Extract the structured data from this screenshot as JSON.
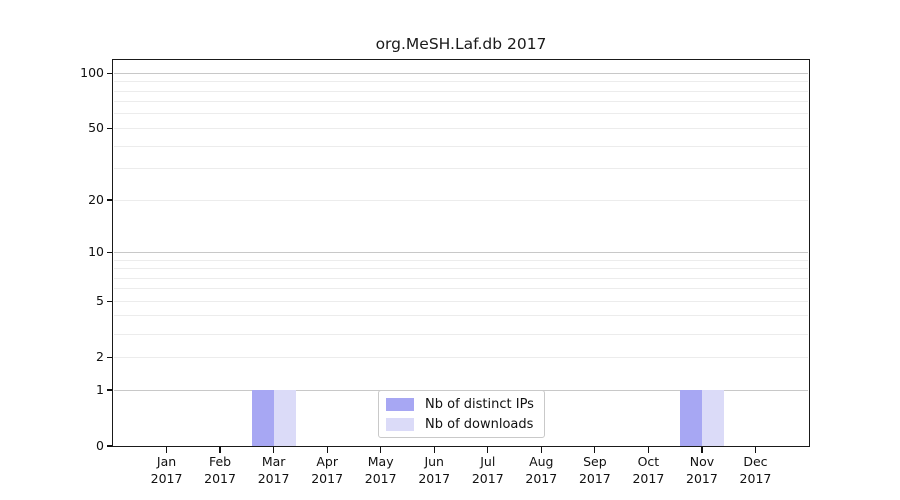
{
  "title": "org.MeSH.Laf.db 2017",
  "chart_data": {
    "type": "bar",
    "title": "org.MeSH.Laf.db 2017",
    "categories": [
      "Jan",
      "Feb",
      "Mar",
      "Apr",
      "May",
      "Jun",
      "Jul",
      "Aug",
      "Sep",
      "Oct",
      "Nov",
      "Dec"
    ],
    "category_year": "2017",
    "series": [
      {
        "name": "Nb of distinct IPs",
        "color": "#a7a7f3",
        "values": [
          0,
          0,
          1,
          0,
          0,
          0,
          0,
          0,
          0,
          0,
          1,
          0
        ]
      },
      {
        "name": "Nb of downloads",
        "color": "#dbdbf8",
        "values": [
          0,
          0,
          1,
          0,
          0,
          0,
          0,
          0,
          0,
          0,
          1,
          0
        ]
      }
    ],
    "xlabel": "",
    "ylabel": "",
    "yscale": "log10(1+y)",
    "ylim": [
      0,
      118
    ],
    "ytick_values": [
      0,
      1,
      2,
      5,
      10,
      20,
      50,
      100
    ],
    "ytick_labels": [
      "0",
      "1",
      "2",
      "5",
      "10",
      "20",
      "50",
      "100"
    ],
    "gridlines": {
      "major": [
        1,
        10,
        100
      ],
      "minor": [
        2,
        3,
        4,
        5,
        6,
        7,
        8,
        9,
        20,
        30,
        40,
        50,
        60,
        70,
        80,
        90
      ]
    },
    "grid": "horizontal",
    "legend_position": "inside-bottom-center",
    "colors": {
      "major_grid": "#c8c8c8",
      "minor_grid": "#ececec",
      "axis": "#1a1a1a",
      "text": "#111111",
      "background": "#ffffff"
    }
  }
}
